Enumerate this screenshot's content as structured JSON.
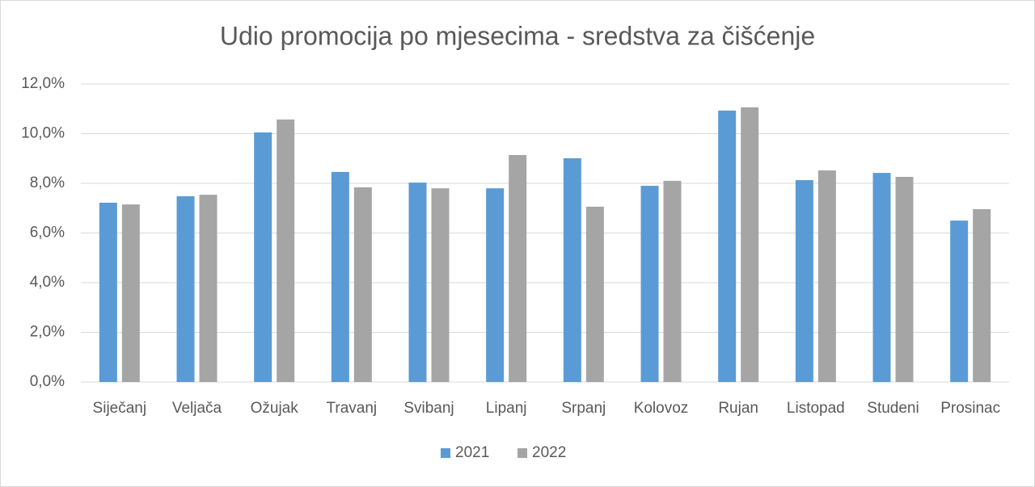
{
  "chart_data": {
    "type": "bar",
    "title": "Udio promocija po mjesecima - sredstva za čišćenje",
    "categories": [
      "Siječanj",
      "Veljača",
      "Ožujak",
      "Travanj",
      "Svibanj",
      "Lipanj",
      "Srpanj",
      "Kolovoz",
      "Rujan",
      "Listopad",
      "Studeni",
      "Prosinac"
    ],
    "series": [
      {
        "name": "2021",
        "color": "#5b9bd5",
        "values": [
          7.22,
          7.48,
          10.05,
          8.46,
          8.03,
          7.8,
          9.01,
          7.9,
          10.93,
          8.13,
          8.42,
          6.5
        ]
      },
      {
        "name": "2022",
        "color": "#a5a5a5",
        "values": [
          7.15,
          7.54,
          10.57,
          7.84,
          7.8,
          9.14,
          7.06,
          8.1,
          11.06,
          8.52,
          8.26,
          6.96
        ]
      }
    ],
    "ylim": [
      0,
      12
    ],
    "yticks": [
      {
        "value": 0,
        "label": "0,0%"
      },
      {
        "value": 2,
        "label": "2,0%"
      },
      {
        "value": 4,
        "label": "4,0%"
      },
      {
        "value": 6,
        "label": "6,0%"
      },
      {
        "value": 8,
        "label": "8,0%"
      },
      {
        "value": 10,
        "label": "10,0%"
      },
      {
        "value": 12,
        "label": "12,0%"
      }
    ],
    "grid": true,
    "legend": "bottom"
  }
}
